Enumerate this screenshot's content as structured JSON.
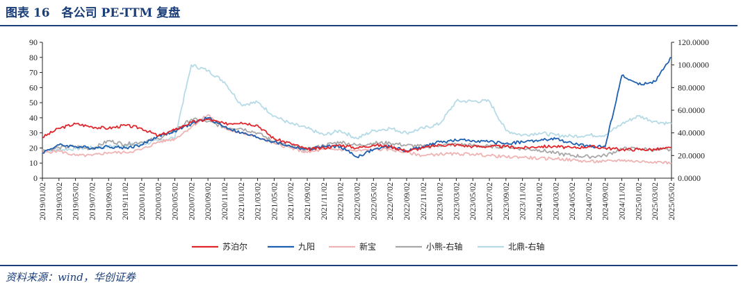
{
  "figure": {
    "title": "图表 16　各公司 PE-TTM 复盘",
    "source": "资料来源：wind，华创证券"
  },
  "chart_data": {
    "type": "line",
    "x": [
      "2019/01/02",
      "2019/03/02",
      "2019/05/02",
      "2019/07/02",
      "2019/09/02",
      "2019/11/02",
      "2020/01/02",
      "2020/03/02",
      "2020/05/02",
      "2020/07/02",
      "2020/09/02",
      "2020/11/02",
      "2021/01/02",
      "2021/03/02",
      "2021/05/02",
      "2021/07/02",
      "2021/09/02",
      "2021/11/02",
      "2022/01/02",
      "2022/03/02",
      "2022/05/02",
      "2022/07/02",
      "2022/09/02",
      "2022/11/02",
      "2023/01/02",
      "2023/03/02",
      "2023/05/02",
      "2023/07/02",
      "2023/09/02",
      "2023/11/02",
      "2024/01/02",
      "2024/03/02",
      "2024/05/02",
      "2024/07/02",
      "2024/09/02",
      "2024/11/02",
      "2025/01/02",
      "2025/03/02",
      "2025/05/02"
    ],
    "y_left": {
      "ticks": [
        "0",
        "10",
        "20",
        "30",
        "40",
        "50",
        "60",
        "70",
        "80",
        "90"
      ],
      "range": [
        0,
        90
      ]
    },
    "y_right": {
      "ticks": [
        "0.0000",
        "20.0000",
        "40.0000",
        "60.0000",
        "80.0000",
        "100.0000",
        "120.0000"
      ],
      "range": [
        0,
        120
      ]
    },
    "legend_position": "bottom",
    "grid": false,
    "series": [
      {
        "name": "苏泊尔",
        "axis": "left",
        "color": "#e0262b",
        "values": [
          27,
          33,
          36,
          34,
          33,
          35,
          33,
          28,
          32,
          37,
          39,
          36,
          37,
          35,
          26,
          23,
          19,
          20,
          22,
          20,
          22,
          21,
          18,
          20,
          22,
          22,
          21,
          21,
          21,
          20,
          21,
          21,
          20,
          21,
          20,
          19,
          19,
          19,
          20
        ]
      },
      {
        "name": "九阳",
        "axis": "left",
        "color": "#1e5fb0",
        "values": [
          17,
          22,
          21,
          20,
          21,
          20,
          22,
          28,
          31,
          36,
          40,
          34,
          30,
          27,
          24,
          21,
          19,
          21,
          21,
          14,
          19,
          21,
          18,
          21,
          24,
          25,
          25,
          24,
          23,
          24,
          25,
          26,
          23,
          21,
          21,
          68,
          62,
          64,
          80
        ]
      },
      {
        "name": "新宝",
        "axis": "left",
        "color": "#f0b3b3",
        "values": [
          17,
          18,
          15,
          15,
          17,
          17,
          19,
          24,
          26,
          34,
          42,
          33,
          30,
          27,
          23,
          20,
          17,
          19,
          19,
          18,
          19,
          19,
          17,
          15,
          16,
          16,
          16,
          15,
          14,
          14,
          13,
          13,
          12,
          11,
          11,
          12,
          11,
          11,
          10
        ]
      },
      {
        "name": "小熊-右轴",
        "axis": "right",
        "color": "#a7a7a7",
        "values": [
          24,
          27,
          28,
          26,
          33,
          30,
          32,
          35,
          42,
          52,
          50,
          45,
          44,
          40,
          32,
          28,
          25,
          29,
          32,
          29,
          31,
          31,
          29,
          28,
          29,
          30,
          29,
          28,
          28,
          26,
          25,
          22,
          20,
          19,
          20,
          26,
          26,
          25,
          25
        ]
      },
      {
        "name": "北鼎-右轴",
        "axis": "right",
        "color": "#b6dbe7",
        "values": [
          25,
          25,
          26,
          27,
          28,
          29,
          30,
          33,
          36,
          100,
          95,
          85,
          65,
          67,
          55,
          48,
          44,
          38,
          42,
          35,
          42,
          44,
          40,
          44,
          48,
          68,
          68,
          68,
          42,
          38,
          40,
          38,
          37,
          38,
          38,
          48,
          55,
          50,
          48
        ]
      }
    ]
  }
}
